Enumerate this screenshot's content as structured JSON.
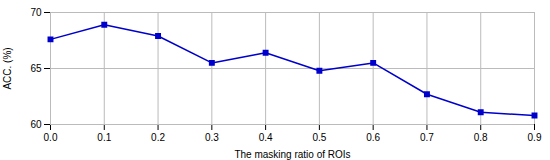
{
  "chart_data": {
    "type": "line",
    "xlabel": "The masking ratio of ROIs",
    "ylabel": "ACC. (%)",
    "x": [
      0.0,
      0.1,
      0.2,
      0.3,
      0.4,
      0.5,
      0.6,
      0.7,
      0.8,
      0.9
    ],
    "values": [
      67.6,
      68.9,
      67.9,
      65.5,
      66.4,
      64.8,
      65.5,
      62.7,
      61.1,
      60.8
    ],
    "color": "#0000cc",
    "marker": "square",
    "line_style": "solid",
    "xlim": [
      0,
      0.9
    ],
    "xticks": [
      {
        "value": 0,
        "label": "0.0"
      },
      0.1,
      0.2,
      0.3,
      0.4,
      0.5,
      0.6,
      0.7,
      0.8,
      0.9
    ],
    "ylim": [
      60,
      70
    ],
    "yticks": [
      60,
      65,
      70
    ],
    "grid": true
  }
}
